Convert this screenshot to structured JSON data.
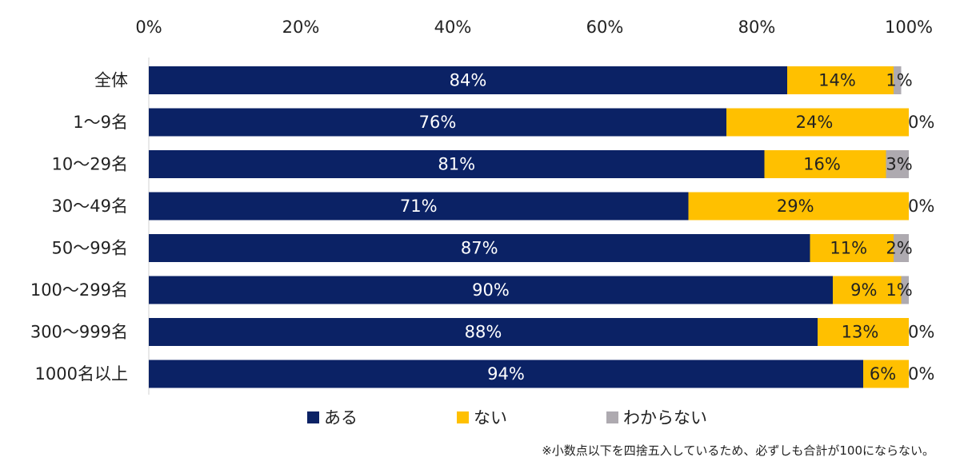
{
  "chart_data": {
    "type": "bar",
    "orientation": "horizontal",
    "stacked": true,
    "categories": [
      "全体",
      "1～9名",
      "10～29名",
      "30～49名",
      "50～99名",
      "100～299名",
      "300～999名",
      "1000名以上"
    ],
    "series": [
      {
        "name": "ある",
        "values": [
          84,
          76,
          81,
          71,
          87,
          90,
          88,
          94
        ],
        "color": "#0b2265",
        "label_color": "#ffffff"
      },
      {
        "name": "ない",
        "values": [
          14,
          24,
          16,
          29,
          11,
          9,
          13,
          6
        ],
        "color": "#ffc000",
        "label_color": "#222222"
      },
      {
        "name": "わからない",
        "values": [
          1,
          0,
          3,
          0,
          2,
          1,
          0,
          0
        ],
        "color": "#aeaab0",
        "label_color": "#222222"
      }
    ],
    "data_labels": [
      [
        "84%",
        "14%",
        "1%"
      ],
      [
        "76%",
        "24%",
        "0%"
      ],
      [
        "81%",
        "16%",
        "3%"
      ],
      [
        "71%",
        "29%",
        "0%"
      ],
      [
        "87%",
        "11%",
        "2%"
      ],
      [
        "90%",
        "9%",
        "1%"
      ],
      [
        "88%",
        "13%",
        "0%"
      ],
      [
        "94%",
        "6%",
        "0%"
      ]
    ],
    "xticks": [
      "0%",
      "20%",
      "40%",
      "60%",
      "80%",
      "100%"
    ],
    "xlim": [
      0,
      100
    ],
    "axis_position": "top",
    "legend_position": "bottom",
    "grid": false,
    "note": "※小数点以下を四捨五入しているため、必ずしも合計が100にならない。"
  }
}
